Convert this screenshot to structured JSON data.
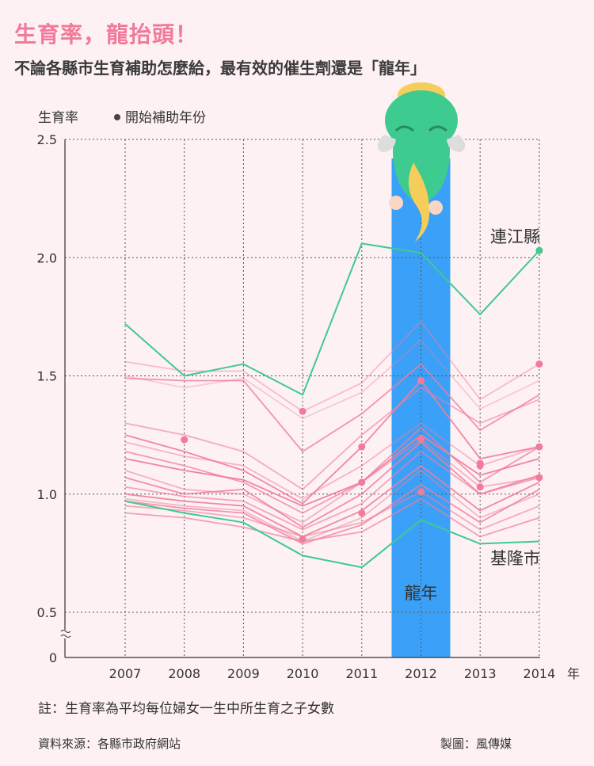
{
  "title": "生育率，龍抬頭！",
  "subtitle": "不論各縣市生育補助怎麼給，最有效的催生劑還是「龍年」",
  "footnote": "註：生育率為平均每位婦女一生中所生育之子女數",
  "source": "資料來源：各縣市政府網站",
  "credit": "製圖：風傳媒",
  "colors": {
    "background": "#fdf1f3",
    "title": "#f2799a",
    "highlight_band": "#3ba1f8",
    "green": "#3ecb8f",
    "pink": "#f07c9b",
    "grid": "#555555"
  },
  "chart_data": {
    "type": "line",
    "ylabel": "生育率",
    "legend_label": "開始補助年份",
    "x_unit": "年",
    "x": [
      2007,
      2008,
      2009,
      2010,
      2011,
      2012,
      2013,
      2014
    ],
    "x_tick_labels": [
      "2007",
      "2008",
      "2009",
      "2010",
      "2011",
      "2012",
      "2013",
      "2014"
    ],
    "y_ticks": [
      0.5,
      1.0,
      1.5,
      2.0,
      2.5
    ],
    "y_tick_labels": [
      "0.5",
      "1.0",
      "1.5",
      "2.0",
      "2.5"
    ],
    "y_zero_label": "0",
    "ylim": [
      0.5,
      2.5
    ],
    "axis_break": true,
    "grid": true,
    "highlight": {
      "x": 2012,
      "label": "龍年"
    },
    "series": [
      {
        "name": "連江縣",
        "color": "#3ecb8f",
        "highlighted": true,
        "values": [
          1.72,
          1.5,
          1.55,
          1.42,
          2.06,
          2.02,
          1.76,
          2.03
        ]
      },
      {
        "name": "基隆市",
        "color": "#3ecb8f",
        "highlighted": true,
        "values": [
          0.97,
          0.92,
          0.88,
          0.74,
          0.69,
          0.89,
          0.79,
          0.8
        ]
      },
      {
        "name": "",
        "values": [
          1.56,
          1.52,
          1.52,
          1.35,
          1.47,
          1.73,
          1.4,
          1.55
        ]
      },
      {
        "name": "",
        "values": [
          1.5,
          1.45,
          1.49,
          1.32,
          1.43,
          1.65,
          1.36,
          1.48
        ]
      },
      {
        "name": "",
        "values": [
          1.49,
          1.48,
          1.48,
          1.18,
          1.34,
          1.55,
          1.27,
          1.42
        ]
      },
      {
        "name": "",
        "values": [
          1.3,
          1.25,
          1.18,
          1.02,
          1.25,
          1.45,
          1.3,
          1.4
        ]
      },
      {
        "name": "",
        "values": [
          1.25,
          1.18,
          1.1,
          0.96,
          1.2,
          1.48,
          1.15,
          1.2
        ]
      },
      {
        "name": "",
        "values": [
          1.22,
          1.16,
          1.12,
          0.98,
          1.12,
          1.3,
          1.12,
          1.2
        ]
      },
      {
        "name": "",
        "values": [
          1.18,
          1.12,
          1.05,
          0.92,
          1.05,
          1.28,
          1.05,
          1.2
        ]
      },
      {
        "name": "",
        "values": [
          1.15,
          1.1,
          1.06,
          0.95,
          1.05,
          1.25,
          1.08,
          1.15
        ]
      },
      {
        "name": "",
        "values": [
          1.1,
          1.02,
          1.0,
          0.88,
          1.05,
          1.23,
          1.03,
          1.07
        ]
      },
      {
        "name": "",
        "values": [
          1.07,
          1.0,
          1.02,
          0.86,
          1.0,
          1.22,
          1.0,
          1.08
        ]
      },
      {
        "name": "",
        "values": [
          1.03,
          0.99,
          0.97,
          0.85,
          0.96,
          1.18,
          1.0,
          1.07
        ]
      },
      {
        "name": "",
        "values": [
          1.0,
          0.97,
          0.95,
          0.82,
          0.93,
          1.12,
          0.93,
          1.05
        ]
      },
      {
        "name": "",
        "values": [
          0.98,
          0.95,
          0.93,
          0.8,
          0.9,
          1.1,
          0.9,
          1.0
        ]
      },
      {
        "name": "",
        "values": [
          0.97,
          0.94,
          0.92,
          0.79,
          0.87,
          1.04,
          0.88,
          1.02
        ]
      },
      {
        "name": "",
        "values": [
          0.95,
          0.93,
          0.9,
          0.82,
          0.88,
          1.01,
          0.85,
          0.95
        ]
      },
      {
        "name": "",
        "values": [
          0.92,
          0.9,
          0.86,
          0.8,
          0.84,
          0.98,
          0.82,
          0.9
        ]
      }
    ],
    "subsidy_start_points": [
      {
        "x": 2008,
        "y": 1.23
      },
      {
        "x": 2010,
        "y": 1.35
      },
      {
        "x": 2010,
        "y": 0.81
      },
      {
        "x": 2011,
        "y": 1.2
      },
      {
        "x": 2011,
        "y": 1.05
      },
      {
        "x": 2011,
        "y": 0.92
      },
      {
        "x": 2012,
        "y": 1.48
      },
      {
        "x": 2012,
        "y": 1.23
      },
      {
        "x": 2012,
        "y": 1.01
      },
      {
        "x": 2013,
        "y": 1.13
      },
      {
        "x": 2013,
        "y": 1.12
      },
      {
        "x": 2013,
        "y": 1.03
      },
      {
        "x": 2014,
        "y": 2.03
      },
      {
        "x": 2014,
        "y": 1.55
      },
      {
        "x": 2014,
        "y": 1.2
      },
      {
        "x": 2014,
        "y": 1.07
      }
    ],
    "illustration": "dragon-icon"
  }
}
